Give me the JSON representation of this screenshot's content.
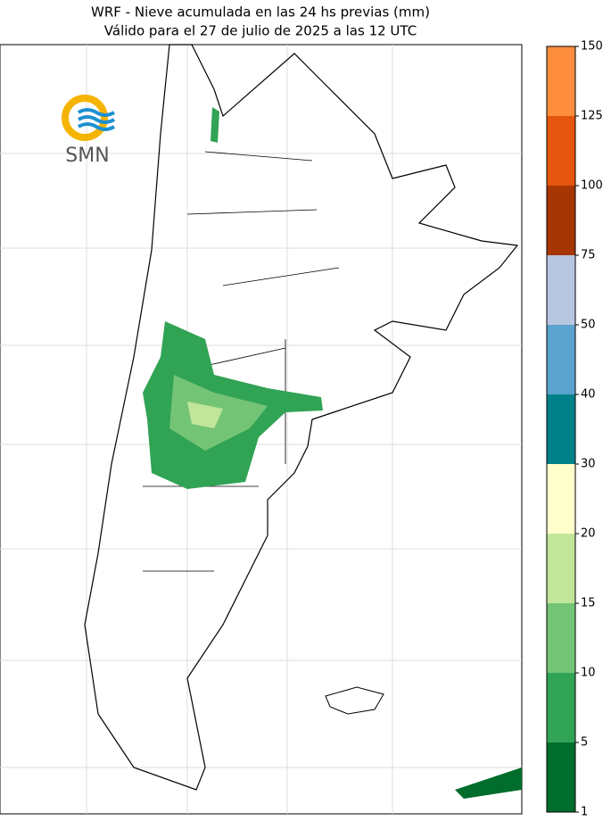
{
  "title": [
    "WRF - Nieve acumulada en las 24 hs previas (mm)",
    "Válido para el 27 de julio de 2025 a las 12 UTC"
  ],
  "logo": "SMN",
  "colorbar": {
    "ticks": [
      1,
      5,
      10,
      15,
      20,
      30,
      40,
      50,
      75,
      100,
      125,
      150
    ],
    "colors": [
      "#006d2c",
      "#31a354",
      "#74c476",
      "#c2e699",
      "#ffffcc",
      "#00818a",
      "#5ba3cf",
      "#b8c6e0",
      "#a63603",
      "#e6550d",
      "#fd8d3c"
    ]
  }
}
